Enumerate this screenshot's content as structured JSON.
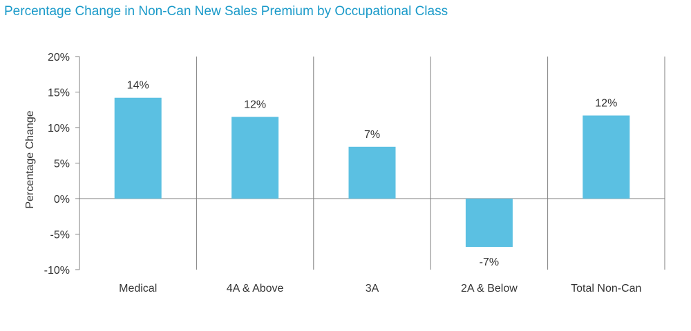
{
  "chart_data": {
    "type": "bar",
    "title": "Percentage Change in Non-Can New Sales Premium by Occupational Class",
    "xlabel": "",
    "ylabel": "Percentage Change",
    "categories": [
      "Medical",
      "4A & Above",
      "3A",
      "2A & Below",
      "Total Non-Can"
    ],
    "values": [
      14.2,
      11.5,
      7.3,
      -6.8,
      11.7
    ],
    "data_labels": [
      "14%",
      "12%",
      "7%",
      "-7%",
      "12%"
    ],
    "ylim": [
      -10,
      20
    ],
    "yticks": [
      20,
      15,
      10,
      5,
      0,
      -5,
      -10
    ],
    "ytick_labels": [
      "20%",
      "15%",
      "10%",
      "5%",
      "0%",
      "-5%",
      "-10%"
    ],
    "bar_color": "#5bc0e2",
    "title_color": "#1a9ac9",
    "axis_color": "#7f7f7f",
    "grid": false,
    "legend": "none"
  }
}
